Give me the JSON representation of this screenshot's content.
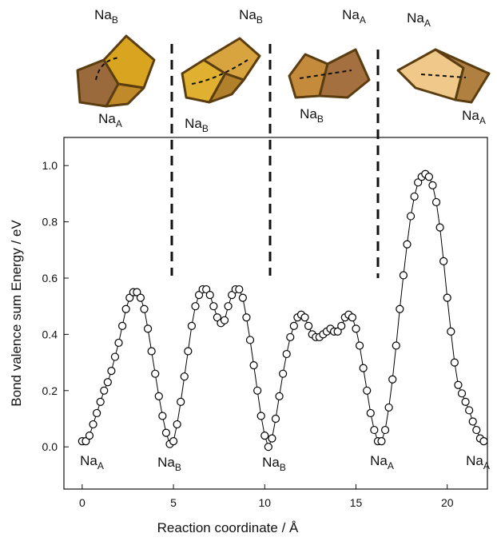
{
  "chart_data": {
    "type": "line",
    "x_label": "Reaction coordinate / Å",
    "y_label": "Bond valence sum Energy / eV",
    "x": [
      0,
      0.2,
      0.4,
      0.6,
      0.8,
      1.0,
      1.2,
      1.4,
      1.6,
      1.8,
      2.0,
      2.2,
      2.4,
      2.6,
      2.8,
      3.0,
      3.2,
      3.4,
      3.6,
      3.8,
      4.0,
      4.2,
      4.4,
      4.6,
      4.8,
      5.0,
      5.2,
      5.4,
      5.6,
      5.8,
      6.0,
      6.2,
      6.4,
      6.6,
      6.8,
      7.0,
      7.2,
      7.4,
      7.6,
      7.8,
      8.0,
      8.2,
      8.4,
      8.6,
      8.8,
      9.0,
      9.2,
      9.4,
      9.6,
      9.8,
      10.0,
      10.2,
      10.4,
      10.6,
      10.8,
      11.0,
      11.2,
      11.4,
      11.6,
      11.8,
      12.0,
      12.2,
      12.4,
      12.6,
      12.8,
      13.0,
      13.2,
      13.4,
      13.6,
      13.8,
      14.0,
      14.2,
      14.4,
      14.6,
      14.8,
      15.0,
      15.2,
      15.4,
      15.6,
      15.8,
      16.0,
      16.2,
      16.4,
      16.6,
      16.8,
      17.0,
      17.2,
      17.4,
      17.6,
      17.8,
      18.0,
      18.2,
      18.4,
      18.6,
      18.8,
      19.0,
      19.2,
      19.4,
      19.6,
      19.8,
      20.0,
      20.2,
      20.4,
      20.6,
      20.8,
      21.0,
      21.2,
      21.4,
      21.6,
      21.8,
      22.0
    ],
    "series": [
      {
        "color": "#000000",
        "values": [
          0.02,
          0.02,
          0.04,
          0.08,
          0.12,
          0.16,
          0.2,
          0.23,
          0.27,
          0.32,
          0.37,
          0.43,
          0.49,
          0.53,
          0.55,
          0.55,
          0.53,
          0.49,
          0.42,
          0.34,
          0.26,
          0.18,
          0.11,
          0.05,
          0.01,
          0.02,
          0.08,
          0.16,
          0.25,
          0.34,
          0.43,
          0.5,
          0.54,
          0.56,
          0.56,
          0.54,
          0.5,
          0.46,
          0.44,
          0.45,
          0.5,
          0.54,
          0.56,
          0.56,
          0.53,
          0.46,
          0.38,
          0.29,
          0.2,
          0.11,
          0.04,
          0.0,
          0.03,
          0.1,
          0.18,
          0.26,
          0.33,
          0.39,
          0.43,
          0.46,
          0.47,
          0.46,
          0.43,
          0.4,
          0.39,
          0.39,
          0.4,
          0.41,
          0.42,
          0.41,
          0.41,
          0.43,
          0.46,
          0.47,
          0.46,
          0.42,
          0.36,
          0.28,
          0.2,
          0.12,
          0.06,
          0.02,
          0.02,
          0.06,
          0.14,
          0.24,
          0.36,
          0.49,
          0.61,
          0.72,
          0.82,
          0.89,
          0.94,
          0.96,
          0.97,
          0.96,
          0.93,
          0.87,
          0.78,
          0.66,
          0.53,
          0.41,
          0.3,
          0.22,
          0.19,
          0.16,
          0.13,
          0.09,
          0.06,
          0.03,
          0.02
        ]
      }
    ],
    "xlim": [
      -1,
      22.2
    ],
    "ylim": [
      -0.15,
      1.1
    ],
    "xticks": [
      0,
      5,
      10,
      15,
      20
    ],
    "yticks": [
      {
        "value": 0,
        "label": "0.0"
      },
      0.2,
      0.4,
      0.6,
      0.8,
      {
        "value": 1,
        "label": "1.0"
      }
    ],
    "point_labels": [
      {
        "base": "Na",
        "sub": "A"
      },
      {
        "base": "Na",
        "sub": "B"
      },
      {
        "base": "Na",
        "sub": "B"
      },
      {
        "base": "Na",
        "sub": "A"
      },
      {
        "base": "Na",
        "sub": "A"
      }
    ],
    "structure_labels": [
      {
        "base": "Na",
        "sub": "B"
      },
      {
        "base": "Na",
        "sub": "A"
      },
      {
        "base": "Na",
        "sub": "B"
      },
      {
        "base": "Na",
        "sub": "B"
      },
      {
        "base": "Na",
        "sub": "A"
      },
      {
        "base": "Na",
        "sub": "B"
      },
      {
        "base": "Na",
        "sub": "A"
      },
      {
        "base": "Na",
        "sub": "A"
      }
    ]
  }
}
